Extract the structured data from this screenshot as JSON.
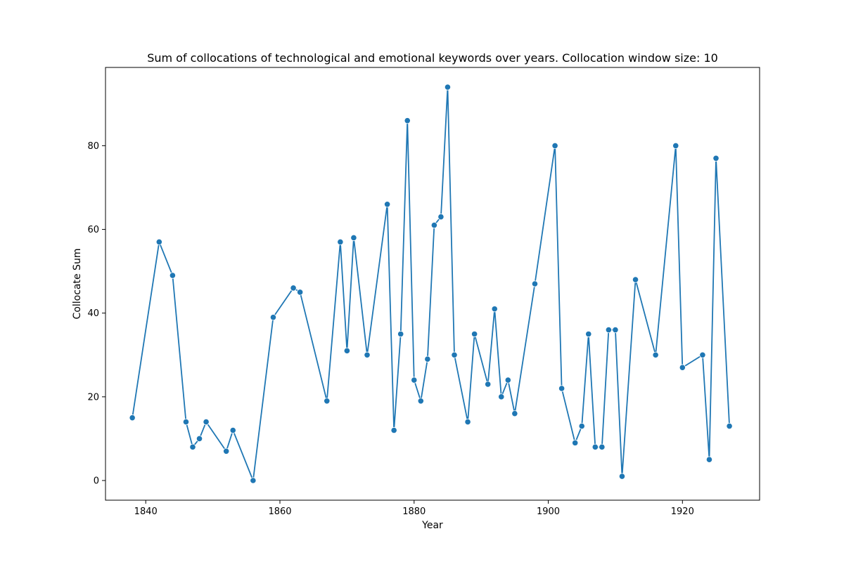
{
  "colors": {
    "series": "#1f77b4",
    "point_edge": "#ffffff",
    "axis": "#000000",
    "background": "#ffffff"
  },
  "chart_data": {
    "type": "line",
    "title": "Sum of collocations of technological and emotional keywords over years. Collocation window size: 10",
    "xlabel": "Year",
    "ylabel": "Collocate Sum",
    "xlim": [
      1834,
      1931.5
    ],
    "ylim": [
      -4.7,
      98.7
    ],
    "xticks": [
      1840,
      1860,
      1880,
      1900,
      1920
    ],
    "yticks": [
      0,
      20,
      40,
      60,
      80
    ],
    "grid": false,
    "legend": "none",
    "markers": true,
    "series": [
      {
        "x": [
          1838,
          1842,
          1844,
          1846,
          1847,
          1848,
          1849,
          1852,
          1853,
          1856,
          1859,
          1862,
          1863,
          1867,
          1869,
          1870,
          1871,
          1873,
          1876,
          1877,
          1878,
          1879,
          1880,
          1881,
          1882,
          1883,
          1884,
          1885,
          1886,
          1888,
          1889,
          1891,
          1892,
          1893,
          1894,
          1895,
          1898,
          1901,
          1902,
          1904,
          1905,
          1906,
          1907,
          1908,
          1909,
          1910,
          1911,
          1913,
          1916,
          1919,
          1920,
          1923,
          1924,
          1925,
          1927
        ],
        "y": [
          15,
          57,
          49,
          14,
          8,
          10,
          14,
          7,
          12,
          0,
          39,
          46,
          45,
          19,
          57,
          31,
          58,
          30,
          66,
          12,
          35,
          86,
          24,
          19,
          29,
          61,
          63,
          94,
          30,
          14,
          35,
          23,
          41,
          20,
          24,
          16,
          47,
          80,
          22,
          9,
          13,
          35,
          8,
          8,
          36,
          36,
          1,
          48,
          30,
          80,
          27,
          30,
          5,
          77,
          13
        ]
      }
    ]
  }
}
